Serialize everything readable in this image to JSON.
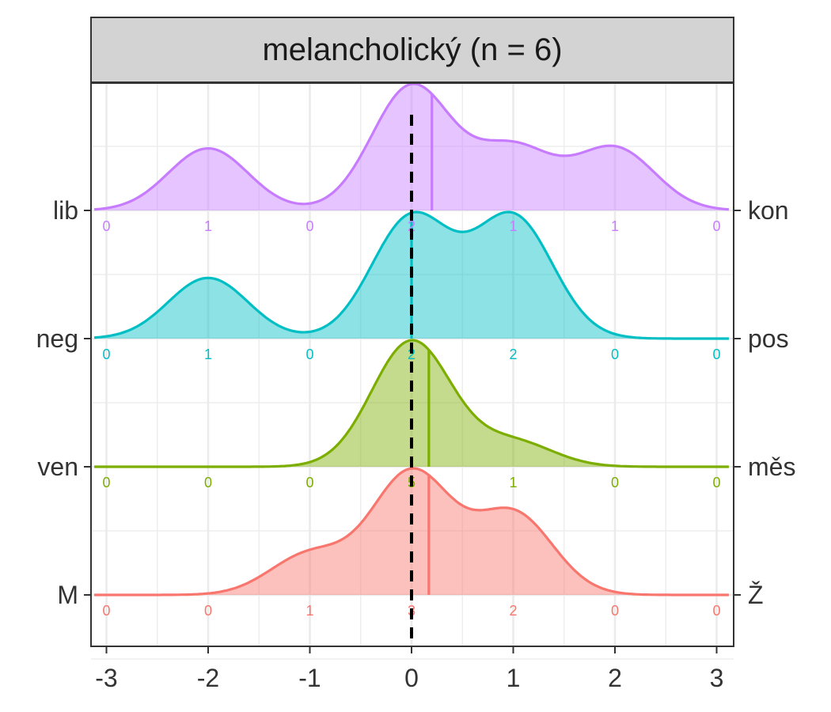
{
  "chart_data": {
    "type": "ridgeline",
    "title": "melancholický (n = 6)",
    "xlim": [
      -3,
      3
    ],
    "x_ticks": [
      -3,
      -2,
      -1,
      0,
      1,
      2,
      3
    ],
    "x_tick_labels": [
      "-3",
      "-2",
      "-1",
      "0",
      "1",
      "2",
      "3"
    ],
    "reference_line_x": 0,
    "count_positions": [
      -3,
      -2,
      -1,
      0,
      1,
      2,
      3
    ],
    "grid": true,
    "series": [
      {
        "left_label": "M",
        "right_label": "Ž",
        "color": "#F8766D",
        "counts": [
          "0",
          "0",
          "1",
          "3",
          "2",
          "0",
          "0"
        ],
        "mean": 0.17
      },
      {
        "left_label": "ven",
        "right_label": "měs",
        "color": "#7CAE00",
        "counts": [
          "0",
          "0",
          "0",
          "5",
          "1",
          "0",
          "0"
        ],
        "mean": 0.17
      },
      {
        "left_label": "neg",
        "right_label": "pos",
        "color": "#00BFC4",
        "counts": [
          "0",
          "1",
          "0",
          "2",
          "2",
          "0",
          "0"
        ],
        "mean": 0.0
      },
      {
        "left_label": "lib",
        "right_label": "kon",
        "color": "#C77CFF",
        "counts": [
          "0",
          "1",
          "0",
          "2",
          "1",
          "1",
          "0"
        ],
        "mean": 0.2
      }
    ]
  }
}
